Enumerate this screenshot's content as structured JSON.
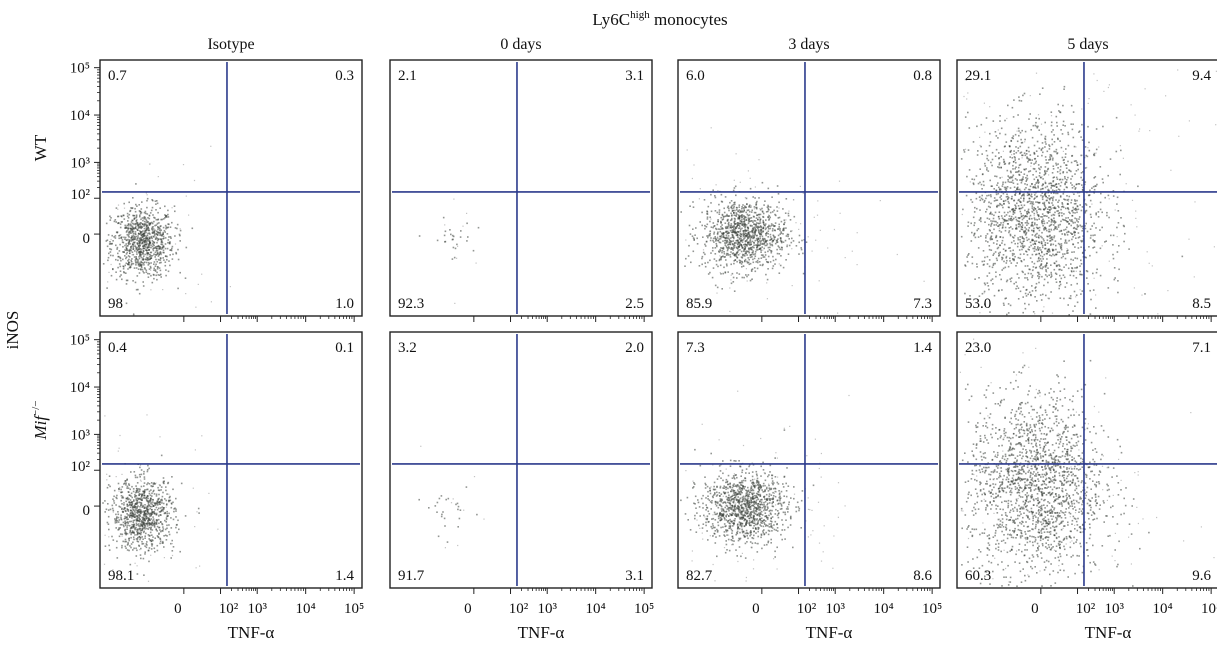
{
  "figure": {
    "title": "Ly6C",
    "title_sup": "high",
    "title_tail": " monocytes",
    "y_group_label": "iNOS"
  },
  "chart_data": {
    "type": "scatter",
    "title": "Ly6Chigh monocytes",
    "columns": [
      "Isotype",
      "0 days",
      "3 days",
      "5 days"
    ],
    "rows": [
      {
        "label_main": "WT",
        "label_sup": ""
      },
      {
        "label_main": "Mif",
        "label_sup": "−/−"
      }
    ],
    "xlabel": "TNF-α",
    "ylabel": "iNOS",
    "x_tick_labels": [
      "0",
      "10²",
      "10³",
      "10⁴",
      "10⁵"
    ],
    "y_tick_labels": [
      "0",
      "10²",
      "10³",
      "10⁴",
      "10⁵"
    ],
    "axis_range": [
      0,
      100000
    ],
    "gate_x": 150,
    "gate_y": 150,
    "panels": [
      {
        "row": 0,
        "col": 0,
        "UL": "0.7",
        "UR": "0.3",
        "LL": "98",
        "LR": "1.0"
      },
      {
        "row": 0,
        "col": 1,
        "UL": "2.1",
        "UR": "3.1",
        "LL": "92.3",
        "LR": "2.5"
      },
      {
        "row": 0,
        "col": 2,
        "UL": "6.0",
        "UR": "0.8",
        "LL": "85.9",
        "LR": "7.3"
      },
      {
        "row": 0,
        "col": 3,
        "UL": "29.1",
        "UR": "9.4",
        "LL": "53.0",
        "LR": "8.5"
      },
      {
        "row": 1,
        "col": 0,
        "UL": "0.4",
        "UR": "0.1",
        "LL": "98.1",
        "LR": "1.4"
      },
      {
        "row": 1,
        "col": 1,
        "UL": "3.2",
        "UR": "2.0",
        "LL": "91.7",
        "LR": "3.1"
      },
      {
        "row": 1,
        "col": 2,
        "UL": "7.3",
        "UR": "1.4",
        "LL": "82.7",
        "LR": "8.6"
      },
      {
        "row": 1,
        "col": 3,
        "UL": "23.0",
        "UR": "7.1",
        "LL": "60.3",
        "LR": "9.6"
      }
    ]
  },
  "colors": {
    "gate": "#2b3a8c",
    "cloud": "#3a3f3a",
    "frame": "#222222"
  }
}
